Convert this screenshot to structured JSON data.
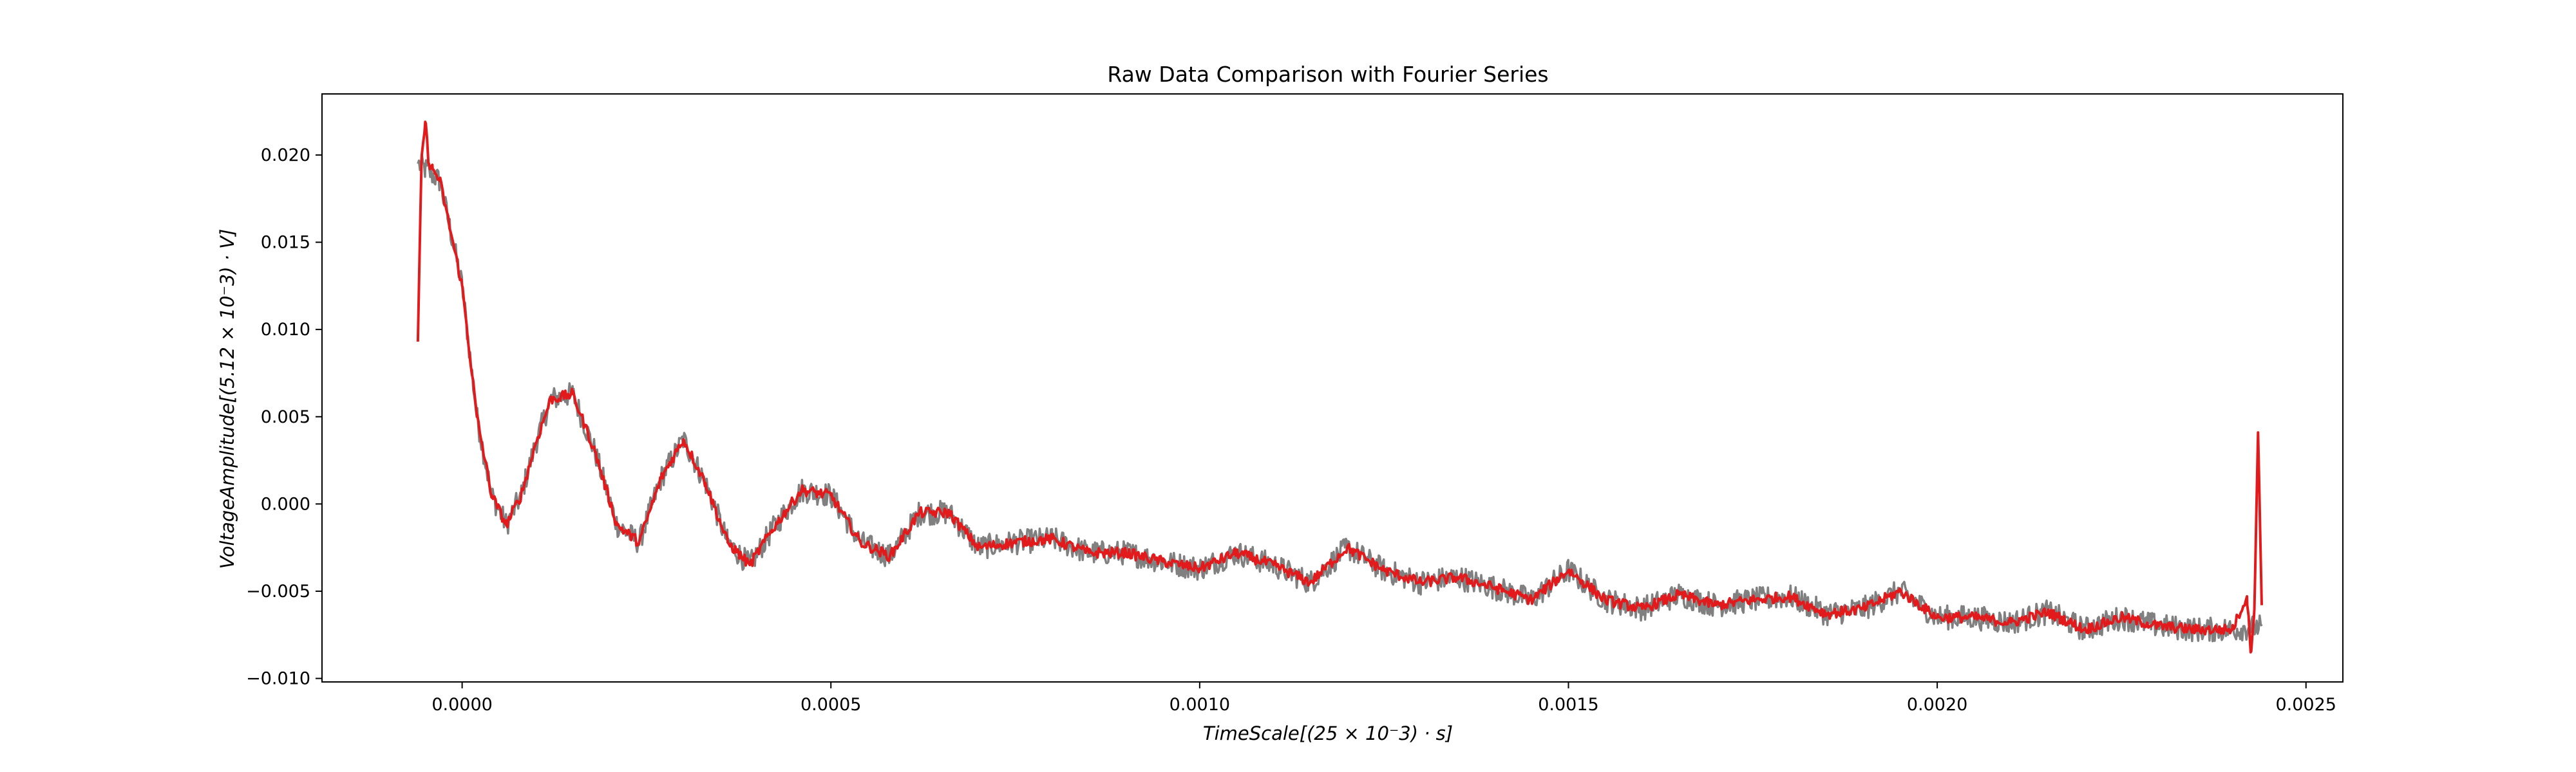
{
  "chart_data": {
    "type": "line",
    "title": "Raw Data Comparison with Fourier Series",
    "xlabel": "TimeScale[(25 × 10⁻3) · s]",
    "ylabel": "VoltageAmplitude[(5.12 × 10⁻3) · V]",
    "xlim": [
      -0.00019,
      0.00255
    ],
    "ylim": [
      -0.0102,
      0.0235
    ],
    "x_ticks": [
      0.0,
      0.0005,
      0.001,
      0.0015,
      0.002,
      0.0025
    ],
    "x_tick_labels": [
      "0.0000",
      "0.0005",
      "0.0010",
      "0.0015",
      "0.0020",
      "0.0025"
    ],
    "y_ticks": [
      -0.01,
      -0.005,
      0.0,
      0.005,
      0.01,
      0.015,
      0.02
    ],
    "y_tick_labels": [
      "−0.010",
      "−0.005",
      "0.000",
      "0.005",
      "0.010",
      "0.015",
      "0.020"
    ],
    "grid": false,
    "legend": "none",
    "series": [
      {
        "color": "#808080",
        "noise": 0.0007,
        "x": [
          -6e-05,
          -5e-05,
          -3e-05,
          0.0,
          2e-05,
          4e-05,
          6e-05,
          8e-05,
          0.0001,
          0.00012,
          0.00015,
          0.00018,
          0.00021,
          0.00024,
          0.00027,
          0.0003,
          0.00033,
          0.00036,
          0.00039,
          0.00042,
          0.00046,
          0.0005,
          0.00054,
          0.00058,
          0.00062,
          0.00066,
          0.0007,
          0.00075,
          0.0008,
          0.00085,
          0.0009,
          0.00095,
          0.001,
          0.00105,
          0.0011,
          0.00115,
          0.0012,
          0.00125,
          0.0013,
          0.00135,
          0.0014,
          0.00145,
          0.0015,
          0.00155,
          0.0016,
          0.00165,
          0.0017,
          0.00175,
          0.0018,
          0.00185,
          0.0019,
          0.00195,
          0.002,
          0.00205,
          0.0021,
          0.00215,
          0.0022,
          0.00225,
          0.0023,
          0.00235,
          0.0024,
          0.00244
        ],
        "y": [
          0.0195,
          0.0192,
          0.0185,
          0.0125,
          0.005,
          0.0005,
          -0.0012,
          0.0005,
          0.0035,
          0.006,
          0.0063,
          0.003,
          -0.0012,
          -0.0022,
          0.0015,
          0.0037,
          0.0012,
          -0.0022,
          -0.0035,
          -0.0015,
          0.0008,
          0.0005,
          -0.0022,
          -0.003,
          -0.0005,
          -0.0005,
          -0.0025,
          -0.0022,
          -0.002,
          -0.0028,
          -0.0028,
          -0.0033,
          -0.0037,
          -0.0028,
          -0.0035,
          -0.0045,
          -0.0025,
          -0.0038,
          -0.0045,
          -0.0042,
          -0.0048,
          -0.0055,
          -0.0038,
          -0.0055,
          -0.006,
          -0.0052,
          -0.0058,
          -0.0055,
          -0.0053,
          -0.0063,
          -0.006,
          -0.005,
          -0.0065,
          -0.0065,
          -0.0068,
          -0.0062,
          -0.0072,
          -0.0065,
          -0.007,
          -0.0072,
          -0.0072,
          -0.007
        ]
      },
      {
        "color": "#e31a1c",
        "noise": 0.0003,
        "x": [
          -6e-05,
          -5.5e-05,
          -5e-05,
          -4.5e-05,
          -4e-05,
          -3e-05,
          0.0,
          2e-05,
          4e-05,
          6e-05,
          8e-05,
          0.0001,
          0.00012,
          0.00015,
          0.00018,
          0.00021,
          0.00024,
          0.00027,
          0.0003,
          0.00033,
          0.00036,
          0.00039,
          0.00042,
          0.00046,
          0.0005,
          0.00054,
          0.00058,
          0.00062,
          0.00066,
          0.0007,
          0.00075,
          0.0008,
          0.00085,
          0.0009,
          0.00095,
          0.001,
          0.00105,
          0.0011,
          0.00115,
          0.0012,
          0.00125,
          0.0013,
          0.00135,
          0.0014,
          0.00145,
          0.0015,
          0.00155,
          0.0016,
          0.00165,
          0.0017,
          0.00175,
          0.0018,
          0.00185,
          0.0019,
          0.00195,
          0.002,
          0.00205,
          0.0021,
          0.00215,
          0.0022,
          0.00225,
          0.0023,
          0.00235,
          0.0024,
          0.00242,
          0.002425,
          0.00243,
          0.002435,
          0.00244
        ],
        "y": [
          0.0093,
          0.0197,
          0.0219,
          0.0195,
          0.0192,
          0.0185,
          0.0125,
          0.005,
          0.0005,
          -0.0012,
          0.0005,
          0.0035,
          0.006,
          0.0063,
          0.003,
          -0.0012,
          -0.0022,
          0.0015,
          0.0037,
          0.0012,
          -0.0022,
          -0.0035,
          -0.0015,
          0.0008,
          0.0005,
          -0.0022,
          -0.003,
          -0.0005,
          -0.0005,
          -0.0025,
          -0.0022,
          -0.002,
          -0.0028,
          -0.0028,
          -0.0033,
          -0.0037,
          -0.0028,
          -0.0035,
          -0.0045,
          -0.0025,
          -0.0038,
          -0.0045,
          -0.0042,
          -0.0048,
          -0.0055,
          -0.0038,
          -0.0055,
          -0.006,
          -0.0052,
          -0.0058,
          -0.0055,
          -0.0053,
          -0.0063,
          -0.006,
          -0.005,
          -0.0065,
          -0.0065,
          -0.0068,
          -0.0062,
          -0.0072,
          -0.0065,
          -0.007,
          -0.0072,
          -0.0072,
          -0.0053,
          -0.0085,
          -0.006,
          0.0041,
          -0.0058
        ]
      }
    ]
  }
}
